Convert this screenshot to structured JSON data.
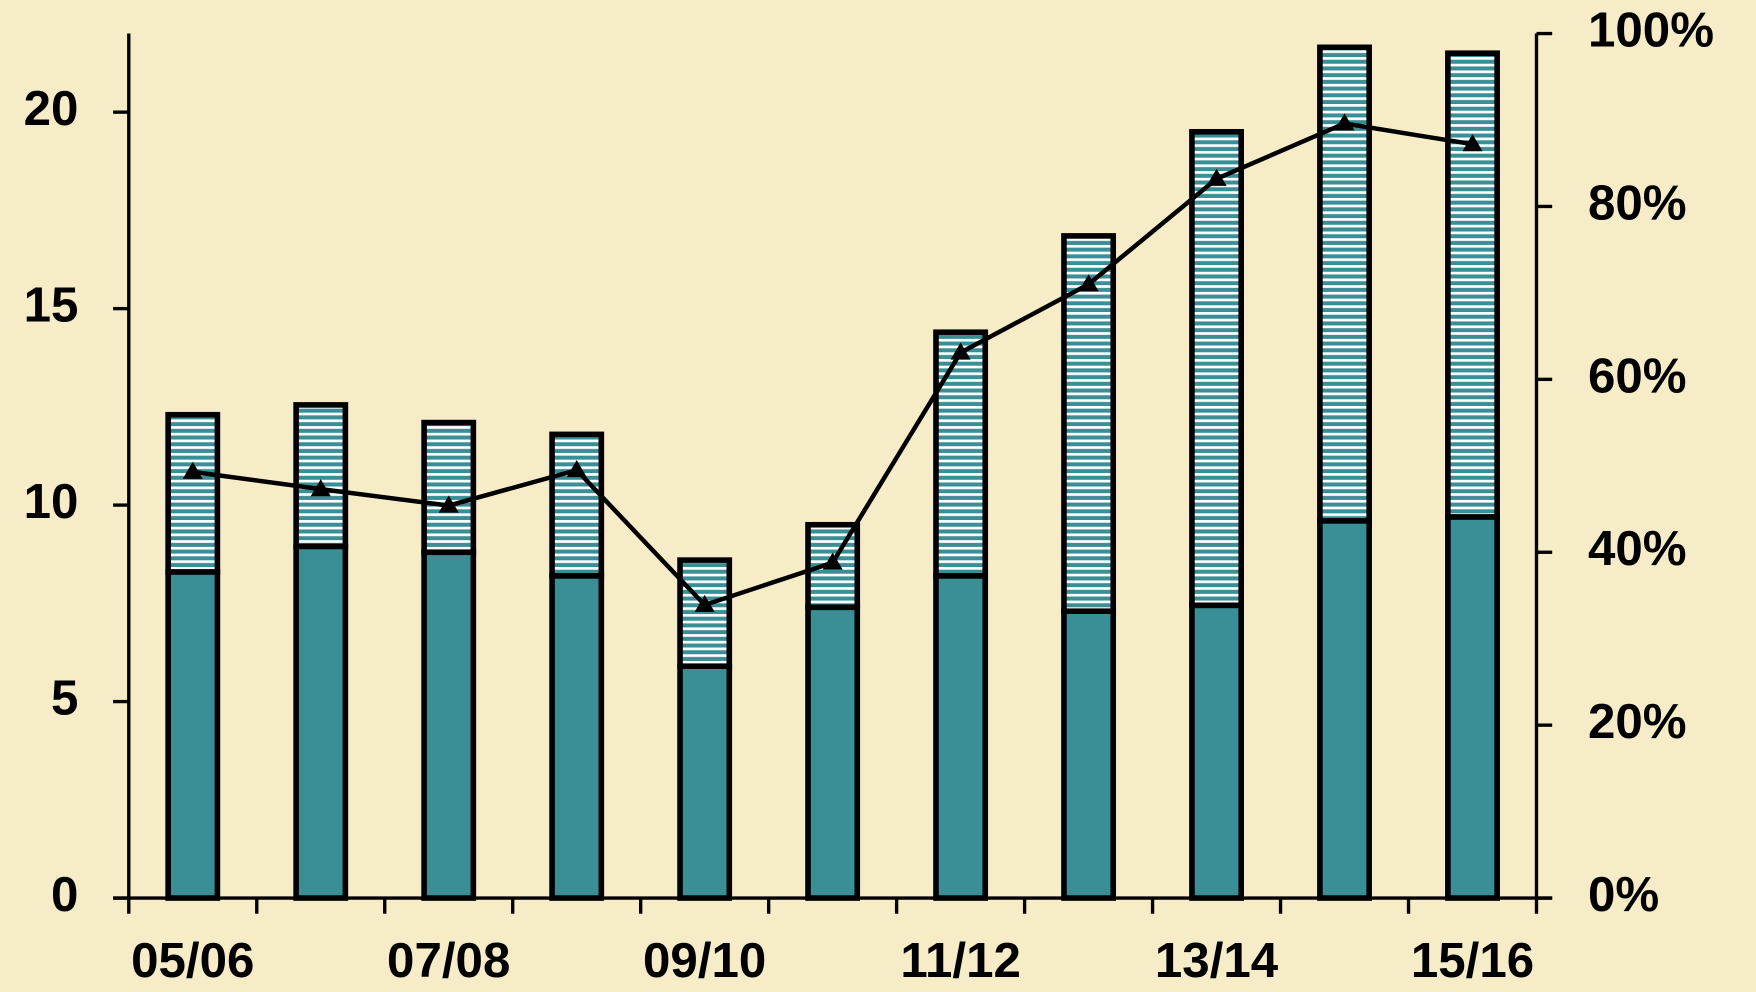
{
  "chart_data": {
    "type": "bar",
    "stacked": true,
    "background": "#f7ecc8",
    "categories": [
      "05/06",
      null,
      "07/08",
      null,
      "09/10",
      null,
      "11/12",
      null,
      "13/14",
      null,
      "15/16"
    ],
    "series": [
      {
        "color": "#3a8f96",
        "pattern": "solid",
        "values": [
          8.3,
          8.95,
          8.8,
          8.2,
          5.9,
          7.4,
          8.2,
          7.3,
          7.45,
          9.6,
          9.7
        ]
      },
      {
        "color": "#3a8f96",
        "pattern": "horizontal-stripes",
        "values": [
          4.0,
          3.6,
          3.3,
          3.6,
          2.7,
          2.1,
          6.2,
          9.55,
          12.05,
          12.05,
          11.8
        ]
      },
      {
        "type": "line",
        "axis": "y2",
        "color": "#000000",
        "marker": "triangle",
        "values": [
          49.3,
          47.3,
          45.4,
          49.5,
          33.9,
          38.8,
          63.1,
          71.0,
          83.2,
          89.6,
          87.2
        ]
      }
    ],
    "ylim": [
      0,
      22
    ],
    "yticks": [
      0,
      5,
      10,
      15,
      20
    ],
    "y2lim": [
      0,
      100
    ],
    "y2ticks": [
      {
        "value": 0,
        "label": "0%"
      },
      {
        "value": 20,
        "label": "20%"
      },
      {
        "value": 40,
        "label": "40%"
      },
      {
        "value": 60,
        "label": "60%"
      },
      {
        "value": 80,
        "label": "80%"
      },
      {
        "value": 100,
        "label": "100%"
      }
    ],
    "grid": false
  }
}
